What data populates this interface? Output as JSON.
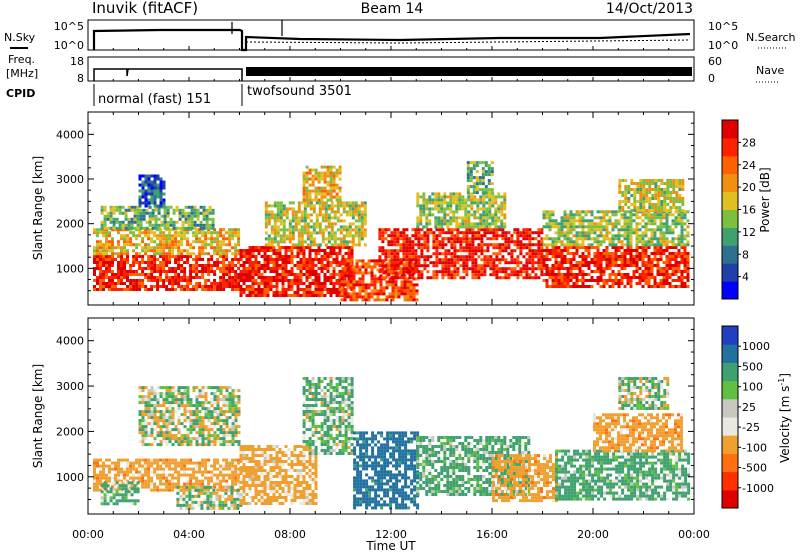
{
  "header": {
    "station": "Inuvik (fitACF)",
    "beam": "Beam 14",
    "date": "14/Oct/2013"
  },
  "side_labels": {
    "nsky": "N.Sky",
    "freq_line1": "Freq.",
    "freq_line2": "[MHz]",
    "cpid": "CPID",
    "nsearch": "N.Search",
    "nave": "Nave"
  },
  "noise_panel": {
    "left_ticks": [
      "10^5",
      "10^0"
    ],
    "right_ticks": [
      "10^5",
      "10^0"
    ]
  },
  "freq_panel": {
    "left_ticks": [
      "18",
      "8"
    ],
    "right_ticks": [
      "60",
      "0"
    ]
  },
  "cpid_segments": [
    {
      "label": "normal (fast) 151",
      "start_hour": 0,
      "end_hour": 6.0
    },
    {
      "label": "twofsound 3501",
      "start_hour": 6.0,
      "end_hour": 24.0
    }
  ],
  "x_axis": {
    "label": "Time UT",
    "ticks": [
      "00:00",
      "04:00",
      "08:00",
      "12:00",
      "16:00",
      "20:00",
      "00:00"
    ],
    "tick_hours": [
      0,
      4,
      8,
      12,
      16,
      20,
      24
    ]
  },
  "colors": {
    "power": [
      "#0000ff",
      "#1f3fa8",
      "#2f6f8f",
      "#3fa070",
      "#7fbf40",
      "#e0c020",
      "#f09010",
      "#ff6000",
      "#ff2000",
      "#e00000"
    ],
    "velocity": [
      "#2040c0",
      "#2070a0",
      "#3fa070",
      "#60c040",
      "#c8c8c0",
      "#e8e8e0",
      "#f0a030",
      "#ff7010",
      "#ff3000",
      "#e00000"
    ]
  },
  "chart_data": [
    {
      "type": "heatmap",
      "title": "",
      "xlabel": "Time UT",
      "ylabel": "Slant Range [km]",
      "xlim": [
        0,
        24
      ],
      "ylim": [
        180,
        4500
      ],
      "y_ticks": [
        1000,
        2000,
        3000,
        4000
      ],
      "y_tick_labels": [
        "1000",
        "2000",
        "3000",
        "4000"
      ],
      "colorbar": {
        "label": "Power [dB]",
        "ticks": [
          "28",
          "24",
          "20",
          "16",
          "12",
          "8",
          "4"
        ],
        "range": [
          0,
          30
        ]
      },
      "echo_regions": [
        {
          "t0": 0.2,
          "t1": 6.0,
          "r0": 500,
          "r1": 1300,
          "level": 26
        },
        {
          "t0": 0.2,
          "t1": 6.0,
          "r0": 1300,
          "r1": 1900,
          "level": 18
        },
        {
          "t0": 0.5,
          "t1": 5.0,
          "r0": 1900,
          "r1": 2400,
          "level": 12
        },
        {
          "t0": 2.0,
          "t1": 3.0,
          "r0": 2400,
          "r1": 3100,
          "level": 6
        },
        {
          "t0": 6.0,
          "t1": 10.5,
          "r0": 400,
          "r1": 1500,
          "level": 27
        },
        {
          "t0": 7.0,
          "t1": 11.0,
          "r0": 1500,
          "r1": 2500,
          "level": 16
        },
        {
          "t0": 8.5,
          "t1": 10.0,
          "r0": 2500,
          "r1": 3300,
          "level": 18
        },
        {
          "t0": 10.0,
          "t1": 13.0,
          "r0": 300,
          "r1": 1200,
          "level": 24
        },
        {
          "t0": 11.5,
          "t1": 18.0,
          "r0": 800,
          "r1": 1900,
          "level": 27
        },
        {
          "t0": 13.0,
          "t1": 16.5,
          "r0": 1900,
          "r1": 2700,
          "level": 14
        },
        {
          "t0": 15.0,
          "t1": 16.0,
          "r0": 2700,
          "r1": 3400,
          "level": 12
        },
        {
          "t0": 18.0,
          "t1": 23.8,
          "r0": 600,
          "r1": 1500,
          "level": 26
        },
        {
          "t0": 18.0,
          "t1": 23.8,
          "r0": 1500,
          "r1": 2300,
          "level": 14
        },
        {
          "t0": 21.0,
          "t1": 23.5,
          "r0": 2300,
          "r1": 3000,
          "level": 16
        }
      ]
    },
    {
      "type": "heatmap",
      "title": "",
      "xlabel": "Time UT",
      "ylabel": "Slant Range [km]",
      "xlim": [
        0,
        24
      ],
      "ylim": [
        180,
        4500
      ],
      "y_ticks": [
        1000,
        2000,
        3000,
        4000
      ],
      "y_tick_labels": [
        "1000",
        "2000",
        "3000",
        "4000"
      ],
      "colorbar": {
        "label": "Velocity [m s^-1]",
        "ticks": [
          "1000",
          "500",
          "100",
          "25",
          "-25",
          "-100",
          "-500",
          "-1000"
        ]
      },
      "echo_regions": [
        {
          "t0": 0.2,
          "t1": 6.0,
          "r0": 700,
          "r1": 1400,
          "value": -300
        },
        {
          "t0": 0.5,
          "t1": 2.0,
          "r0": 400,
          "r1": 900,
          "value": 150
        },
        {
          "t0": 2.0,
          "t1": 6.0,
          "r0": 1700,
          "r1": 3000,
          "value": 0
        },
        {
          "t0": 3.5,
          "t1": 6.0,
          "r0": 300,
          "r1": 800,
          "value": 0
        },
        {
          "t0": 6.0,
          "t1": 9.0,
          "r0": 400,
          "r1": 1700,
          "value": -250
        },
        {
          "t0": 8.5,
          "t1": 10.5,
          "r0": 1500,
          "r1": 3200,
          "value": 120
        },
        {
          "t0": 10.5,
          "t1": 13.0,
          "r0": 300,
          "r1": 2000,
          "value": 700
        },
        {
          "t0": 13.0,
          "t1": 17.5,
          "r0": 600,
          "r1": 1900,
          "value": 200
        },
        {
          "t0": 16.0,
          "t1": 18.5,
          "r0": 500,
          "r1": 1500,
          "value": -300
        },
        {
          "t0": 18.5,
          "t1": 23.8,
          "r0": 500,
          "r1": 1600,
          "value": 200
        },
        {
          "t0": 20.0,
          "t1": 23.5,
          "r0": 1600,
          "r1": 2400,
          "value": -300
        },
        {
          "t0": 21.0,
          "t1": 23.0,
          "r0": 2500,
          "r1": 3200,
          "value": 40
        }
      ]
    }
  ]
}
